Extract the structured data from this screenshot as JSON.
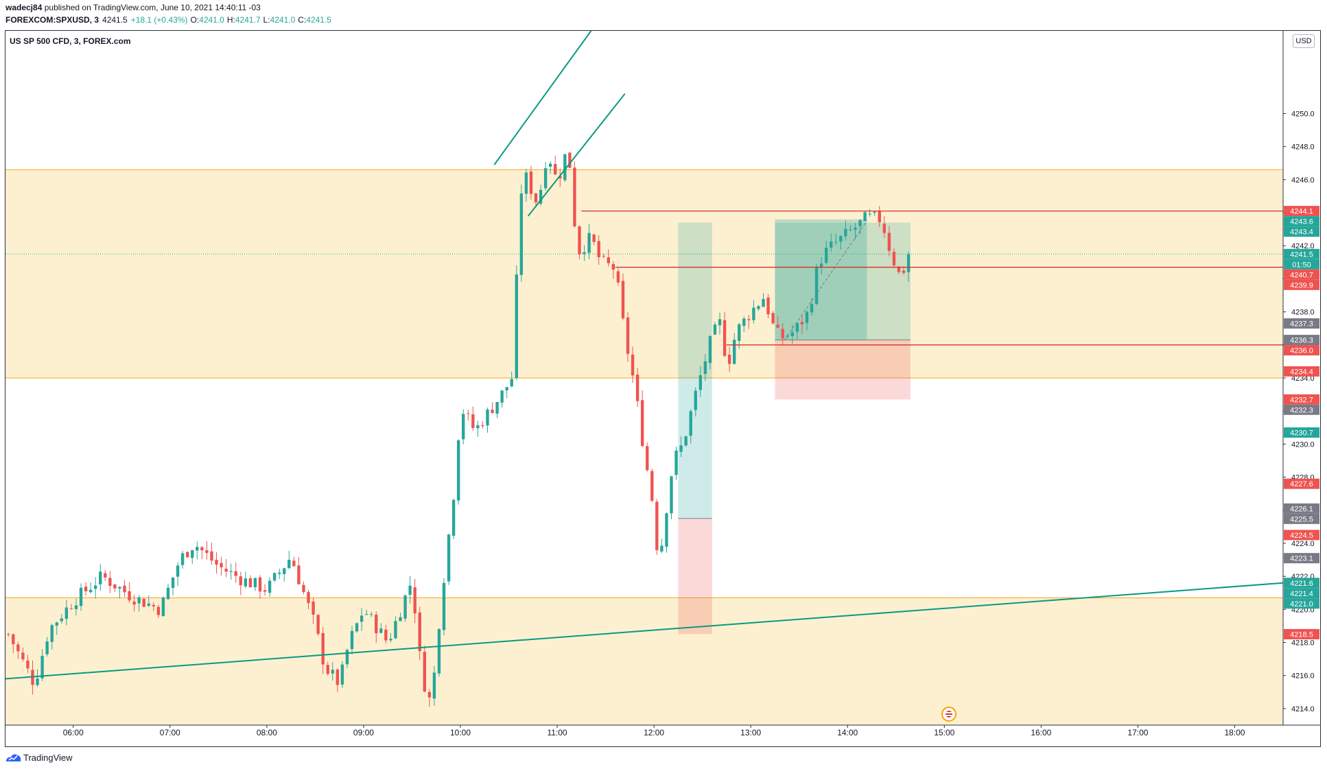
{
  "header": {
    "author": "wadecj84",
    "published_text": "published on TradingView.com, June 10, 2021 14:40:11 -03",
    "symbol": "FOREXCOM:SPXUSD, 3",
    "last": "4241.5",
    "change": "+18.1 (+0.43%)",
    "o_label": "O:",
    "o_value": "4241.0",
    "h_label": "H:",
    "h_value": "4241.7",
    "l_label": "L:",
    "l_value": "4241.0",
    "c_label": "C:",
    "c_value": "4241.5"
  },
  "chart_title": "US SP 500 CFD, 3, FOREX.com",
  "currency_badge": "USD",
  "footer": {
    "brand": "TradingView"
  },
  "colors": {
    "up": "#26a69a",
    "down": "#ef5350",
    "zone": "#fdf0d0",
    "zone_line": "#f5a623",
    "level_line": "#d32f2f",
    "trend": "#089981"
  },
  "chart_data": {
    "type": "candlestick",
    "ylim": [
      4213.0,
      4255.0
    ],
    "y_ticks": [
      4214.0,
      4216.0,
      4218.0,
      4220.0,
      4222.0,
      4224.0,
      4226.0,
      4228.0,
      4230.0,
      4232.0,
      4234.0,
      4236.0,
      4238.0,
      4240.0,
      4242.0,
      4244.0,
      4246.0,
      4248.0,
      4250.0
    ],
    "x_ticks": [
      "06:00",
      "07:00",
      "08:00",
      "09:00",
      "10:00",
      "11:00",
      "12:00",
      "13:00",
      "14:00",
      "15:00",
      "16:00",
      "17:00",
      "18:00"
    ],
    "x_range_hours": [
      5.3,
      18.5
    ],
    "zones": [
      {
        "from": 4234.0,
        "to": 4246.6
      },
      {
        "from": 4213.0,
        "to": 4220.7
      }
    ],
    "horizontal_levels": [
      {
        "price": 4244.1,
        "start_hour": 11.25
      },
      {
        "price": 4240.7,
        "start_hour": 11.6
      },
      {
        "price": 4236.0,
        "start_hour": 12.75
      }
    ],
    "last_price_line": 4241.5,
    "trendlines": [
      {
        "x1": 5.3,
        "y1": 4215.8,
        "x2": 18.5,
        "y2": 4221.6
      },
      {
        "x1": 10.35,
        "y1": 4246.9,
        "x2": 11.35,
        "y2": 4255.0
      },
      {
        "x1": 10.7,
        "y1": 4243.8,
        "x2": 11.7,
        "y2": 4251.2
      }
    ],
    "positions": [
      {
        "start_hour": 12.25,
        "end_hour": 12.6,
        "entry": 4225.5,
        "target": 4243.4,
        "stop": 4218.5,
        "filled_to": 4230.7
      },
      {
        "start_hour": 13.25,
        "end_hour": 14.65,
        "entry": 4236.3,
        "target": 4243.4,
        "stop": 4232.7,
        "filled_to": 4243.6
      }
    ],
    "price_labels": [
      {
        "price": 4244.1,
        "text": "4244.1",
        "color": "#ef5350"
      },
      {
        "price": 4243.6,
        "text": "4243.6",
        "color": "#26a69a"
      },
      {
        "price": 4243.4,
        "text": "4243.4",
        "color": "#26a69a"
      },
      {
        "price": 4241.5,
        "text": "4241.5",
        "color": "#26a69a"
      },
      {
        "price": 4240.9,
        "text": "01:50",
        "color": "#26a69a"
      },
      {
        "price": 4240.7,
        "text": "4240.7",
        "color": "#ef5350"
      },
      {
        "price": 4239.9,
        "text": "4239.9",
        "color": "#ef5350"
      },
      {
        "price": 4237.3,
        "text": "4237.3",
        "color": "#787b86"
      },
      {
        "price": 4236.3,
        "text": "4236.3",
        "color": "#787b86"
      },
      {
        "price": 4236.0,
        "text": "4236.0",
        "color": "#ef5350"
      },
      {
        "price": 4234.4,
        "text": "4234.4",
        "color": "#ef5350"
      },
      {
        "price": 4232.7,
        "text": "4232.7",
        "color": "#ef5350"
      },
      {
        "price": 4232.3,
        "text": "4232.3",
        "color": "#787b86"
      },
      {
        "price": 4230.7,
        "text": "4230.7",
        "color": "#26a69a"
      },
      {
        "price": 4227.6,
        "text": "4227.6",
        "color": "#ef5350"
      },
      {
        "price": 4226.1,
        "text": "4226.1",
        "color": "#787b86"
      },
      {
        "price": 4225.5,
        "text": "4225.5",
        "color": "#787b86"
      },
      {
        "price": 4224.5,
        "text": "4224.5",
        "color": "#ef5350"
      },
      {
        "price": 4223.1,
        "text": "4223.1",
        "color": "#787b86"
      },
      {
        "price": 4221.6,
        "text": "4221.6",
        "color": "#26a69a"
      },
      {
        "price": 4221.4,
        "text": "4221.4",
        "color": "#26a69a"
      },
      {
        "price": 4221.0,
        "text": "4221.0",
        "color": "#26a69a"
      },
      {
        "price": 4218.5,
        "text": "4218.5",
        "color": "#ef5350"
      }
    ],
    "key_points": [
      [
        5.33,
        4218.5
      ],
      [
        5.6,
        4215.5
      ],
      [
        5.75,
        4218.8
      ],
      [
        6.0,
        4220.5
      ],
      [
        6.3,
        4222.0
      ],
      [
        6.6,
        4220.8
      ],
      [
        6.9,
        4220.0
      ],
      [
        7.1,
        4223.0
      ],
      [
        7.25,
        4224.0
      ],
      [
        7.5,
        4222.6
      ],
      [
        7.75,
        4221.8
      ],
      [
        8.0,
        4221.2
      ],
      [
        8.25,
        4223.2
      ],
      [
        8.5,
        4219.0
      ],
      [
        8.6,
        4216.5
      ],
      [
        8.75,
        4215.5
      ],
      [
        8.85,
        4218.0
      ],
      [
        9.0,
        4220.0
      ],
      [
        9.25,
        4218.0
      ],
      [
        9.5,
        4221.8
      ],
      [
        9.6,
        4216.0
      ],
      [
        9.7,
        4214.2
      ],
      [
        9.8,
        4220.5
      ],
      [
        9.95,
        4228.0
      ],
      [
        10.0,
        4232.3
      ],
      [
        10.15,
        4230.8
      ],
      [
        10.3,
        4232.0
      ],
      [
        10.45,
        4233.2
      ],
      [
        10.55,
        4234.2
      ],
      [
        10.6,
        4243.6
      ],
      [
        10.65,
        4246.5
      ],
      [
        10.8,
        4244.5
      ],
      [
        10.9,
        4247.8
      ],
      [
        11.0,
        4245.8
      ],
      [
        11.1,
        4247.8
      ],
      [
        11.15,
        4246.3
      ],
      [
        11.2,
        4241.5
      ],
      [
        11.35,
        4242.5
      ],
      [
        11.45,
        4241.0
      ],
      [
        11.6,
        4240.6
      ],
      [
        11.7,
        4236.5
      ],
      [
        11.8,
        4233.5
      ],
      [
        11.9,
        4229.5
      ],
      [
        12.0,
        4226.0
      ],
      [
        12.05,
        4222.5
      ],
      [
        12.1,
        4225.0
      ],
      [
        12.2,
        4229.0
      ],
      [
        12.3,
        4230.0
      ],
      [
        12.45,
        4233.5
      ],
      [
        12.6,
        4236.5
      ],
      [
        12.7,
        4237.5
      ],
      [
        12.75,
        4234.5
      ],
      [
        12.85,
        4236.8
      ],
      [
        13.0,
        4238.0
      ],
      [
        13.15,
        4239.0
      ],
      [
        13.2,
        4237.5
      ],
      [
        13.3,
        4236.4
      ],
      [
        13.45,
        4236.8
      ],
      [
        13.6,
        4238.0
      ],
      [
        13.7,
        4241.0
      ],
      [
        13.8,
        4241.8
      ],
      [
        13.95,
        4242.5
      ],
      [
        14.1,
        4243.2
      ],
      [
        14.2,
        4243.7
      ],
      [
        14.35,
        4243.6
      ],
      [
        14.45,
        4241.5
      ],
      [
        14.55,
        4240.0
      ],
      [
        14.63,
        4241.5
      ]
    ]
  }
}
